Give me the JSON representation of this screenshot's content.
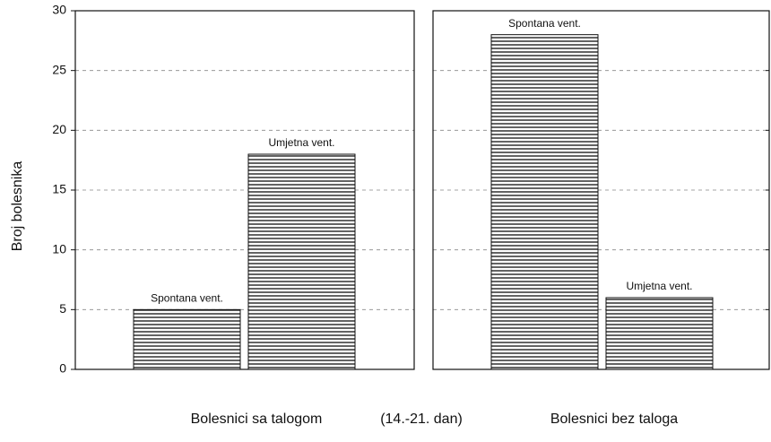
{
  "chart_data": [
    {
      "type": "bar",
      "xlabel": "Bolesnici sa talogom",
      "ylabel": "Broj bolesnika",
      "annotation": "(14.-21. dan)",
      "categories": [
        "Spontana vent.",
        "Umjetna vent."
      ],
      "values": [
        5,
        18
      ],
      "ylim": [
        0,
        30
      ],
      "yticks": [
        0,
        5,
        10,
        15,
        20,
        25,
        30
      ],
      "grid": true
    },
    {
      "type": "bar",
      "xlabel": "Bolesnici bez taloga",
      "categories": [
        "Spontana vent.",
        "Umjetna vent."
      ],
      "values": [
        28,
        6
      ],
      "ylim": [
        0,
        30
      ],
      "yticks": [
        0,
        5,
        10,
        15,
        20,
        25,
        30
      ],
      "grid": true
    }
  ]
}
